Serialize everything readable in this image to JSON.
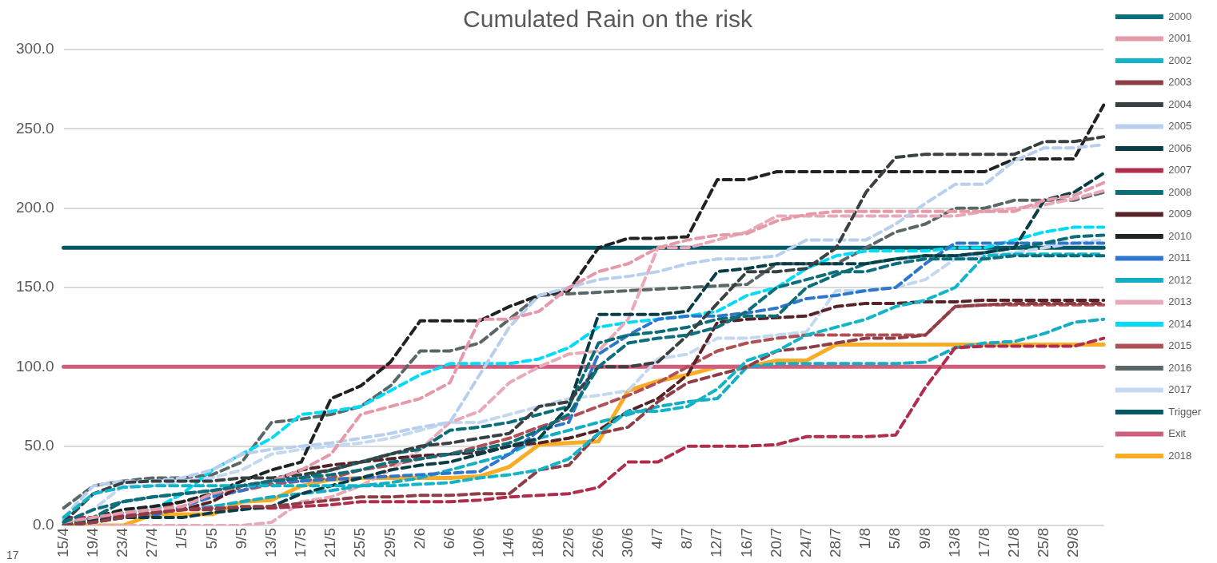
{
  "chart_data": {
    "type": "line",
    "title": "Cumulated Rain on the risk",
    "categories": [
      "15/4",
      "19/4",
      "23/4",
      "27/4",
      "1/5",
      "5/5",
      "9/5",
      "13/5",
      "17/5",
      "21/5",
      "25/5",
      "29/5",
      "2/6",
      "6/6",
      "10/6",
      "14/6",
      "18/6",
      "22/6",
      "26/6",
      "30/6",
      "4/7",
      "8/7",
      "12/7",
      "16/7",
      "20/7",
      "24/7",
      "28/7",
      "1/8",
      "5/8",
      "9/8",
      "13/8",
      "17/8",
      "21/8",
      "25/8",
      "29/8",
      null
    ],
    "ylim": [
      0,
      300
    ],
    "yticks": [
      {
        "value": 0,
        "label": "0.0"
      },
      {
        "value": 50,
        "label": "50.0"
      },
      {
        "value": 100,
        "label": "100.0"
      },
      {
        "value": 150,
        "label": "150.0"
      },
      {
        "value": 200,
        "label": "200.0"
      },
      {
        "value": 250,
        "label": "250.0"
      },
      {
        "value": 300,
        "label": "300.0"
      }
    ],
    "grid": "y",
    "legend": "right",
    "marker": "none",
    "line_style": "dashed",
    "annotations": [
      "17"
    ],
    "series": [
      {
        "name": "2000",
        "color": "#0e6e7a",
        "values": [
          2,
          10,
          15,
          18,
          20,
          22,
          25,
          28,
          30,
          32,
          35,
          40,
          42,
          45,
          48,
          52,
          60,
          70,
          100,
          115,
          118,
          120,
          125,
          135,
          150,
          155,
          160,
          160,
          165,
          168,
          168,
          168,
          170,
          170,
          170,
          170
        ]
      },
      {
        "name": "2001",
        "color": "#e69aa9",
        "values": [
          2,
          5,
          8,
          10,
          12,
          20,
          25,
          28,
          35,
          45,
          70,
          75,
          80,
          90,
          130,
          130,
          135,
          150,
          160,
          165,
          175,
          180,
          183,
          184,
          192,
          196,
          198,
          198,
          198,
          198,
          198,
          198,
          198,
          205,
          208,
          216
        ]
      },
      {
        "name": "2002",
        "color": "#12b5c8",
        "values": [
          5,
          20,
          24,
          25,
          25,
          25,
          25,
          25,
          25,
          25,
          25,
          25,
          26,
          27,
          30,
          32,
          35,
          42,
          58,
          72,
          72,
          75,
          86,
          104,
          110,
          120,
          125,
          130,
          138,
          142,
          150,
          170,
          171,
          171,
          171,
          171
        ]
      },
      {
        "name": "2003",
        "color": "#8e3e46",
        "values": [
          0,
          2,
          5,
          8,
          10,
          10,
          12,
          12,
          14,
          16,
          18,
          18,
          19,
          19,
          20,
          20,
          35,
          38,
          58,
          62,
          78,
          90,
          95,
          100,
          110,
          112,
          115,
          118,
          118,
          120,
          138,
          139,
          140,
          140,
          140,
          140
        ]
      },
      {
        "name": "2004",
        "color": "#3a4142",
        "values": [
          2,
          20,
          27,
          28,
          28,
          28,
          30,
          30,
          32,
          35,
          40,
          45,
          50,
          52,
          55,
          58,
          75,
          78,
          100,
          100,
          103,
          120,
          140,
          160,
          160,
          162,
          175,
          210,
          232,
          234,
          234,
          234,
          234,
          242,
          242,
          245
        ]
      },
      {
        "name": "2005",
        "color": "#b8d0ee",
        "values": [
          5,
          25,
          28,
          28,
          30,
          35,
          45,
          48,
          50,
          52,
          55,
          58,
          62,
          65,
          95,
          125,
          145,
          150,
          155,
          157,
          160,
          165,
          168,
          168,
          170,
          180,
          180,
          180,
          190,
          203,
          215,
          215,
          230,
          238,
          238,
          240
        ]
      },
      {
        "name": "2006",
        "color": "#0a3e47",
        "values": [
          0,
          3,
          5,
          5,
          5,
          8,
          10,
          12,
          20,
          25,
          30,
          35,
          38,
          40,
          45,
          50,
          55,
          75,
          133,
          133,
          133,
          135,
          160,
          162,
          165,
          165,
          165,
          165,
          168,
          170,
          170,
          172,
          175,
          205,
          210,
          222
        ]
      },
      {
        "name": "2007",
        "color": "#b02d4d",
        "values": [
          5,
          5,
          6,
          8,
          10,
          11,
          11,
          11,
          12,
          13,
          15,
          15,
          15,
          15,
          16,
          18,
          19,
          20,
          24,
          40,
          40,
          50,
          50,
          50,
          51,
          56,
          56,
          56,
          57,
          87,
          112,
          113,
          113,
          113,
          113,
          118
        ]
      },
      {
        "name": "2008",
        "color": "#0b6e76",
        "values": [
          0,
          5,
          15,
          18,
          20,
          22,
          25,
          28,
          30,
          35,
          40,
          45,
          48,
          60,
          62,
          65,
          70,
          75,
          115,
          120,
          122,
          125,
          130,
          132,
          132,
          150,
          158,
          165,
          168,
          170,
          170,
          172,
          175,
          178,
          182,
          183
        ]
      },
      {
        "name": "2009",
        "color": "#562328",
        "values": [
          0,
          2,
          5,
          8,
          10,
          15,
          25,
          28,
          35,
          38,
          40,
          42,
          44,
          45,
          46,
          50,
          52,
          55,
          60,
          72,
          80,
          95,
          128,
          130,
          131,
          132,
          138,
          140,
          140,
          141,
          141,
          142,
          142,
          142,
          142,
          142
        ]
      },
      {
        "name": "2010",
        "color": "#1f2323",
        "values": [
          0,
          5,
          10,
          12,
          15,
          20,
          28,
          35,
          40,
          80,
          88,
          103,
          129,
          129,
          129,
          138,
          145,
          148,
          175,
          181,
          181,
          182,
          218,
          218,
          223,
          223,
          223,
          223,
          223,
          223,
          223,
          223,
          231,
          231,
          231,
          265
        ]
      },
      {
        "name": "2011",
        "color": "#2f77cc",
        "values": [
          2,
          4,
          5,
          6,
          12,
          18,
          22,
          28,
          28,
          29,
          30,
          31,
          32,
          33,
          34,
          45,
          60,
          65,
          108,
          120,
          130,
          132,
          132,
          134,
          137,
          143,
          145,
          148,
          150,
          165,
          178,
          178,
          178,
          178,
          178,
          178
        ]
      },
      {
        "name": "2012",
        "color": "#14aec4",
        "values": [
          0,
          2,
          5,
          8,
          10,
          12,
          15,
          18,
          20,
          22,
          25,
          27,
          30,
          35,
          40,
          45,
          55,
          60,
          65,
          70,
          75,
          78,
          80,
          100,
          102,
          102,
          102,
          102,
          102,
          103,
          112,
          115,
          116,
          121,
          128,
          130
        ]
      },
      {
        "name": "2013",
        "color": "#e8aab9",
        "values": [
          0,
          0,
          0,
          0,
          0,
          0,
          0,
          2,
          15,
          18,
          25,
          35,
          48,
          65,
          72,
          90,
          100,
          108,
          110,
          130,
          175,
          175,
          180,
          185,
          195,
          195,
          195,
          195,
          195,
          195,
          195,
          198,
          200,
          202,
          206,
          211
        ]
      },
      {
        "name": "2014",
        "color": "#00dcf8",
        "values": [
          3,
          5,
          8,
          10,
          20,
          35,
          45,
          55,
          70,
          72,
          75,
          85,
          95,
          102,
          102,
          102,
          105,
          112,
          125,
          128,
          130,
          132,
          135,
          145,
          150,
          162,
          170,
          173,
          173,
          173,
          175,
          175,
          180,
          185,
          188,
          188
        ]
      },
      {
        "name": "2015",
        "color": "#b05055",
        "values": [
          2,
          5,
          8,
          10,
          15,
          20,
          22,
          26,
          28,
          30,
          35,
          38,
          42,
          45,
          50,
          55,
          62,
          68,
          75,
          82,
          90,
          100,
          110,
          115,
          118,
          120,
          120,
          120,
          120,
          120,
          138,
          139,
          139,
          139,
          139,
          139
        ]
      },
      {
        "name": "2016",
        "color": "#5b6767",
        "values": [
          11,
          25,
          28,
          30,
          30,
          32,
          40,
          65,
          67,
          70,
          75,
          88,
          110,
          110,
          115,
          130,
          145,
          146,
          147,
          148,
          149,
          150,
          151,
          152,
          165,
          165,
          165,
          175,
          185,
          190,
          200,
          200,
          205,
          205,
          205,
          210
        ]
      },
      {
        "name": "2017",
        "color": "#c4d8f0",
        "values": [
          2,
          10,
          25,
          25,
          28,
          30,
          35,
          45,
          48,
          50,
          52,
          55,
          60,
          65,
          65,
          70,
          75,
          80,
          82,
          85,
          105,
          108,
          118,
          118,
          120,
          122,
          148,
          148,
          150,
          155,
          168,
          170,
          172,
          175,
          178,
          180
        ]
      },
      {
        "name": "Trigger",
        "color": "#035965",
        "line_style": "solid",
        "values": [
          175,
          175,
          175,
          175,
          175,
          175,
          175,
          175,
          175,
          175,
          175,
          175,
          175,
          175,
          175,
          175,
          175,
          175,
          175,
          175,
          175,
          175,
          175,
          175,
          175,
          175,
          175,
          175,
          175,
          175,
          175,
          175,
          175,
          175,
          175,
          175
        ]
      },
      {
        "name": "Exit",
        "color": "#cf5d7c",
        "line_style": "solid",
        "values": [
          100,
          100,
          100,
          100,
          100,
          100,
          100,
          100,
          100,
          100,
          100,
          100,
          100,
          100,
          100,
          100,
          100,
          100,
          100,
          100,
          100,
          100,
          100,
          100,
          100,
          100,
          100,
          100,
          100,
          100,
          100,
          100,
          100,
          100,
          100,
          100
        ]
      },
      {
        "name": "2018",
        "color": "#f9ad25",
        "line_style": "solid",
        "values": [
          0,
          0,
          0,
          7,
          7,
          7,
          15,
          16,
          25,
          29,
          30,
          30,
          30,
          30,
          31,
          37,
          51,
          52,
          53,
          85,
          91,
          95,
          100,
          100,
          104,
          104,
          114,
          114,
          114,
          114,
          114,
          114,
          114,
          114,
          114,
          114
        ]
      }
    ]
  }
}
